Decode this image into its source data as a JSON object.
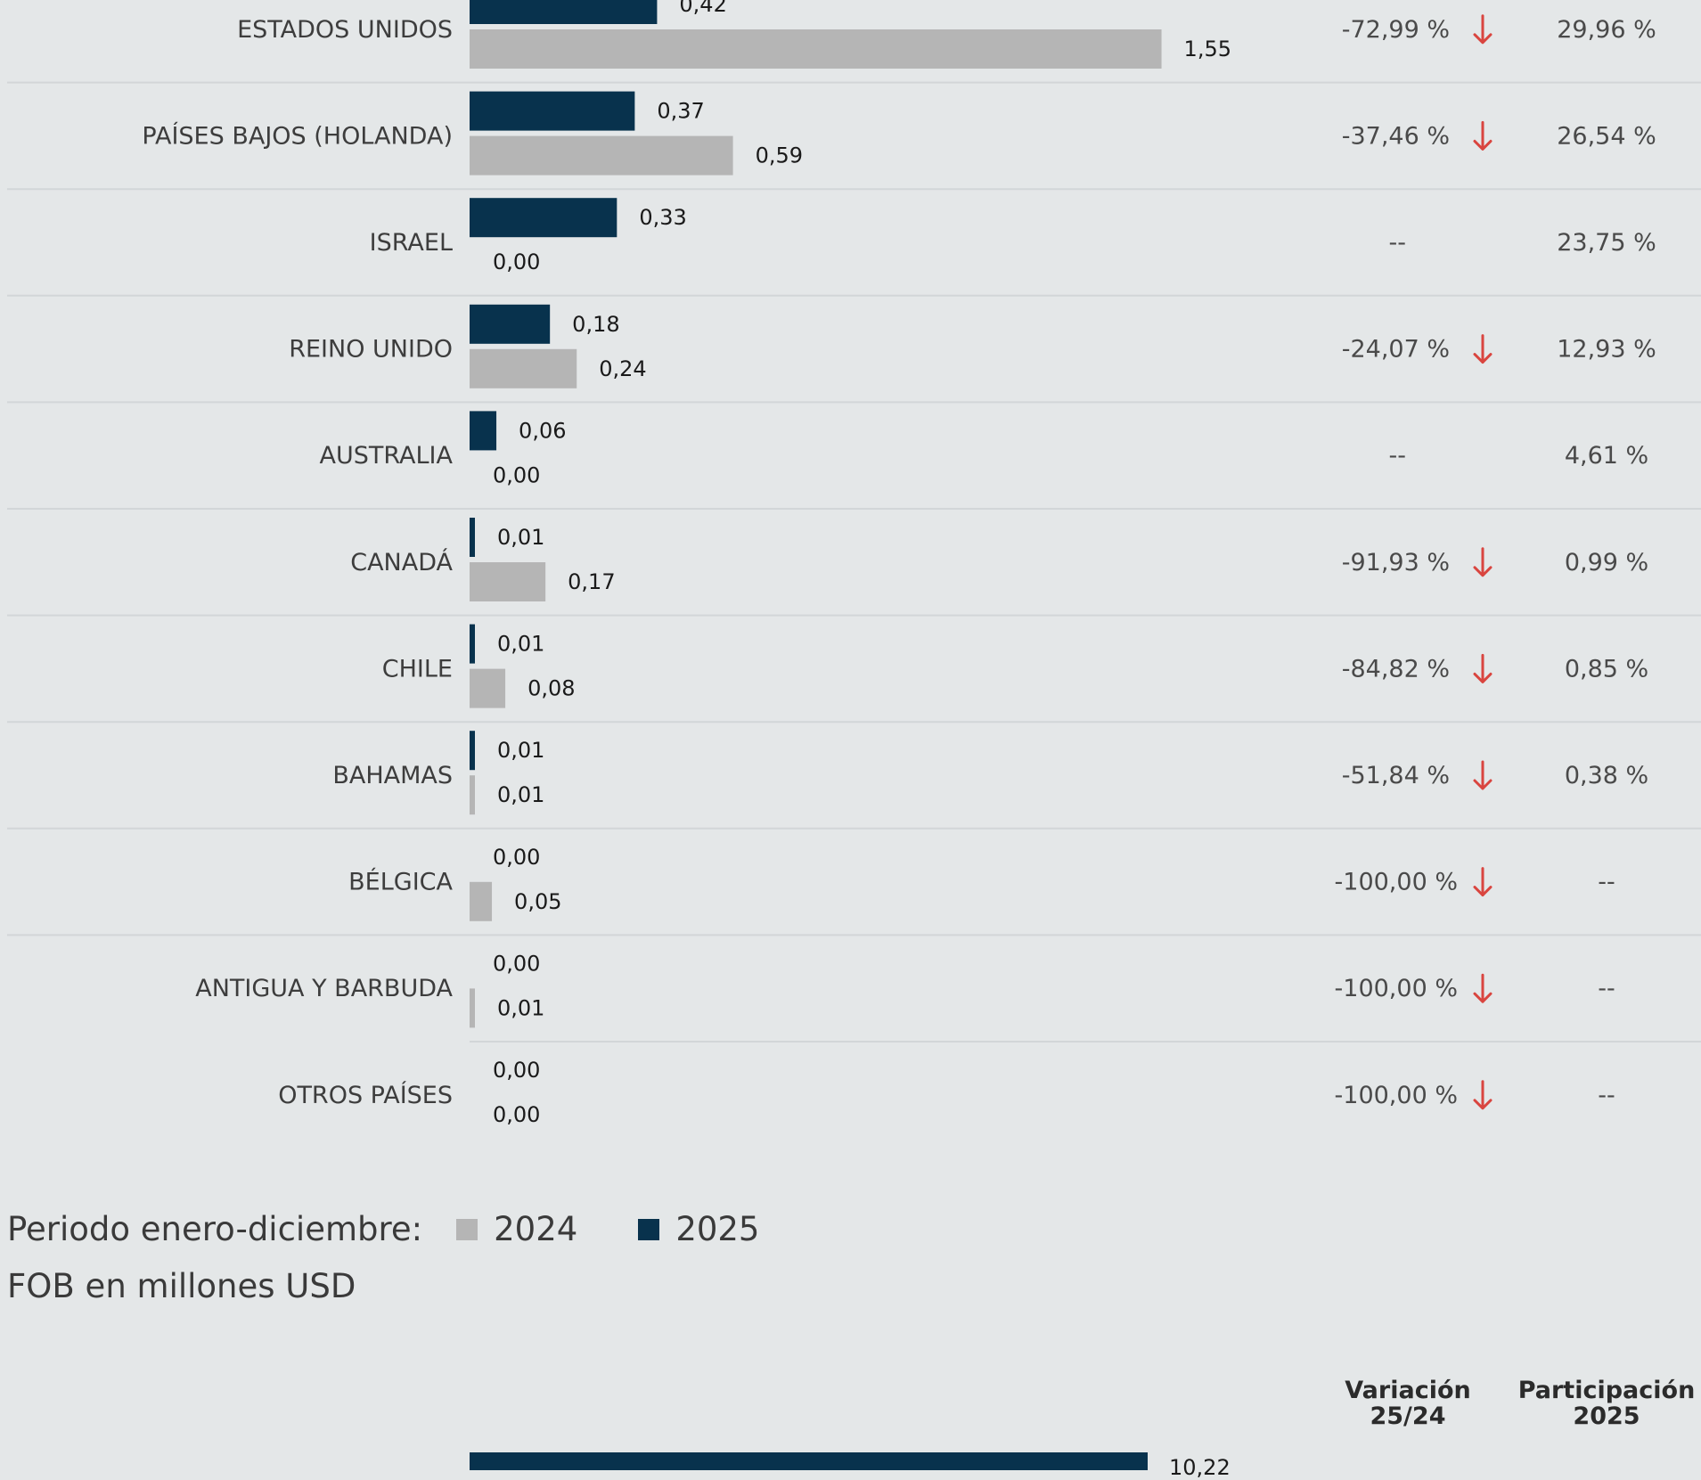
{
  "chart_data": {
    "type": "bar",
    "orientation": "horizontal",
    "categories": [
      "ESTADOS UNIDOS",
      "PAÍSES BAJOS (HOLANDA)",
      "ISRAEL",
      "REINO UNIDO",
      "AUSTRALIA",
      "CANADÁ",
      "CHILE",
      "BAHAMAS",
      "BÉLGICA",
      "ANTIGUA Y BARBUDA",
      "OTROS PAÍSES"
    ],
    "series": [
      {
        "name": "2025",
        "color": "#08324d",
        "values": [
          0.42,
          0.37,
          0.33,
          0.18,
          0.06,
          0.01,
          0.01,
          0.01,
          0.0,
          0.0,
          0.0
        ],
        "labels": [
          "0,42",
          "0,37",
          "0,33",
          "0,18",
          "0,06",
          "0,01",
          "0,01",
          "0,01",
          "0,00",
          "0,00",
          "0,00"
        ]
      },
      {
        "name": "2024",
        "color": "#b5b5b5",
        "values": [
          1.55,
          0.59,
          0.0,
          0.24,
          0.0,
          0.17,
          0.08,
          0.01,
          0.05,
          0.01,
          0.0
        ],
        "labels": [
          "1,55",
          "0,59",
          "0,00",
          "0,24",
          "0,00",
          "0,17",
          "0,08",
          "0,01",
          "0,05",
          "0,01",
          "0,00"
        ]
      }
    ],
    "variacion": [
      "-72,99 %",
      "-37,46 %",
      "--",
      "-24,07 %",
      "--",
      "-91,93 %",
      "-84,82 %",
      "-51,84 %",
      "-100,00 %",
      "-100,00 %",
      "-100,00 %"
    ],
    "variacion_arrow": [
      "down",
      "down",
      "",
      "down",
      "",
      "down",
      "down",
      "down",
      "down",
      "down",
      "down"
    ],
    "participacion": [
      "29,96 %",
      "26,54 %",
      "23,75 %",
      "12,93 %",
      "4,61 %",
      "0,99 %",
      "0,85 %",
      "0,38 %",
      "--",
      "--",
      "--"
    ],
    "arrow_color": "#d9453f"
  },
  "legend": {
    "prefix": "Periodo enero-diciembre:",
    "item_2024": "2024",
    "item_2025": "2025"
  },
  "unit_label": "FOB en millones USD",
  "next_chart": {
    "col_variacion_line1": "Variación",
    "col_variacion_line2": "25/24",
    "col_participacion_line1": "Participación",
    "col_participacion_line2": "2025",
    "first_bar_label": "10,22"
  }
}
